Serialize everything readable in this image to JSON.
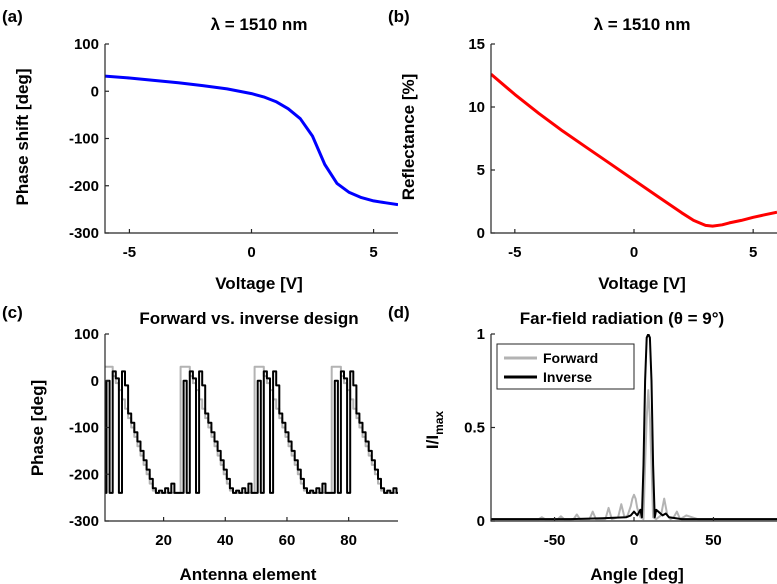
{
  "chart_data": [
    {
      "panel": "(a)",
      "type": "line",
      "title": "λ = 1510 nm",
      "xlabel": "Voltage [V]",
      "ylabel": "Phase shift [deg]",
      "xlim": [
        -6,
        6
      ],
      "ylim": [
        -300,
        100
      ],
      "xticks": [
        -5,
        0,
        5
      ],
      "yticks": [
        100,
        0,
        -100,
        -200,
        -300
      ],
      "grid": false,
      "series": [
        {
          "color": "#0000ff",
          "step": false,
          "x": [
            -6,
            -5,
            -4,
            -3,
            -2,
            -1,
            0,
            0.5,
            1,
            1.5,
            2,
            2.5,
            3,
            3.5,
            4,
            4.5,
            5,
            5.5,
            6
          ],
          "y": [
            32,
            28,
            23,
            18,
            12,
            5,
            -5,
            -12,
            -22,
            -37,
            -58,
            -95,
            -155,
            -195,
            -214,
            -225,
            -232,
            -236,
            -240
          ]
        }
      ]
    },
    {
      "panel": "(b)",
      "type": "line",
      "title": "λ = 1510 nm",
      "xlabel": "Voltage [V]",
      "ylabel": "Reflectance [%]",
      "xlim": [
        -6,
        6
      ],
      "ylim": [
        0,
        15
      ],
      "xticks": [
        -5,
        0,
        5
      ],
      "yticks": [
        0,
        5,
        10,
        15
      ],
      "grid": false,
      "series": [
        {
          "color": "#ff0000",
          "step": false,
          "x": [
            -6,
            -5,
            -4,
            -3,
            -2,
            -1,
            0,
            1,
            2,
            2.5,
            3,
            3.3,
            3.7,
            4,
            4.5,
            5,
            5.5,
            6
          ],
          "y": [
            12.6,
            11.0,
            9.5,
            8.1,
            6.8,
            5.5,
            4.2,
            2.9,
            1.6,
            1.0,
            0.6,
            0.55,
            0.65,
            0.8,
            1.0,
            1.25,
            1.45,
            1.65
          ]
        }
      ]
    },
    {
      "panel": "(c)",
      "type": "line",
      "title": "Forward vs. inverse design",
      "xlabel": "Antenna element",
      "ylabel": "Phase [deg]",
      "xlim": [
        1,
        96
      ],
      "ylim": [
        -300,
        100
      ],
      "xticks": [
        20,
        40,
        60,
        80
      ],
      "yticks": [
        100,
        0,
        -100,
        -200,
        -300
      ],
      "grid": false,
      "series": [
        {
          "name": "Forward",
          "color": "#b3b3b3",
          "step": true,
          "x": [
            1,
            2,
            3,
            4,
            5,
            6,
            7,
            8,
            9,
            10,
            11,
            12,
            13,
            14,
            15,
            16,
            17,
            18,
            19,
            20,
            21,
            22,
            23,
            24,
            25,
            26,
            27,
            28,
            29,
            30,
            31,
            32,
            33,
            34,
            35,
            36,
            37,
            38,
            39,
            40,
            41,
            42,
            43,
            44,
            45,
            46,
            47,
            48,
            49,
            50,
            51,
            52,
            53,
            54,
            55,
            56,
            57,
            58,
            59,
            60,
            61,
            62,
            63,
            64,
            65,
            66,
            67,
            68,
            69,
            70,
            71,
            72,
            73,
            74,
            75,
            76,
            77,
            78,
            79,
            80,
            81,
            82,
            83,
            84,
            85,
            86,
            87,
            88,
            89,
            90,
            91,
            92,
            93,
            94,
            95,
            96
          ],
          "y": [
            30,
            30,
            30,
            10,
            -5,
            -20,
            -40,
            -60,
            -80,
            -100,
            -120,
            -140,
            -160,
            -180,
            -200,
            -220,
            -235,
            -240,
            -240,
            -240,
            -240,
            -240,
            -240,
            -240,
            -240,
            30,
            30,
            30,
            10,
            -5,
            -20,
            -40,
            -60,
            -80,
            -100,
            -120,
            -140,
            -160,
            -180,
            -200,
            -220,
            -235,
            -240,
            -240,
            -240,
            -240,
            -240,
            -240,
            -240,
            30,
            30,
            30,
            10,
            -5,
            -20,
            -40,
            -60,
            -80,
            -100,
            -120,
            -140,
            -160,
            -180,
            -200,
            -220,
            -235,
            -240,
            -240,
            -240,
            -240,
            -240,
            -240,
            -240,
            -240,
            30,
            30,
            30,
            10,
            -5,
            -20,
            -40,
            -60,
            -80,
            -100,
            -120,
            -140,
            -160,
            -180,
            -200,
            -220,
            -235,
            -240,
            -240,
            -240,
            -240,
            -240
          ]
        },
        {
          "name": "Inverse",
          "color": "#000000",
          "step": true,
          "x": [
            1,
            2,
            3,
            4,
            5,
            6,
            7,
            8,
            9,
            10,
            11,
            12,
            13,
            14,
            15,
            16,
            17,
            18,
            19,
            20,
            21,
            22,
            23,
            24,
            25,
            26,
            27,
            28,
            29,
            30,
            31,
            32,
            33,
            34,
            35,
            36,
            37,
            38,
            39,
            40,
            41,
            42,
            43,
            44,
            45,
            46,
            47,
            48,
            49,
            50,
            51,
            52,
            53,
            54,
            55,
            56,
            57,
            58,
            59,
            60,
            61,
            62,
            63,
            64,
            65,
            66,
            67,
            68,
            69,
            70,
            71,
            72,
            73,
            74,
            75,
            76,
            77,
            78,
            79,
            80,
            81,
            82,
            83,
            84,
            85,
            86,
            87,
            88,
            89,
            90,
            91,
            92,
            93,
            94,
            95,
            96
          ],
          "y": [
            -240,
            0,
            -240,
            20,
            5,
            -240,
            20,
            -10,
            -70,
            -90,
            -110,
            -130,
            -150,
            -170,
            -190,
            -210,
            -230,
            -240,
            -235,
            -240,
            -230,
            -240,
            -220,
            -240,
            -240,
            -240,
            0,
            -240,
            20,
            5,
            -240,
            20,
            -10,
            -70,
            -90,
            -110,
            -130,
            -150,
            -170,
            -190,
            -210,
            -230,
            -240,
            -235,
            -240,
            -230,
            -240,
            -220,
            -240,
            -240,
            0,
            -240,
            20,
            5,
            -240,
            20,
            -10,
            -70,
            -90,
            -110,
            -130,
            -150,
            -170,
            -190,
            -210,
            -230,
            -240,
            -235,
            -240,
            -230,
            -240,
            -220,
            -240,
            -240,
            -240,
            0,
            -240,
            20,
            5,
            -240,
            20,
            -10,
            -70,
            -90,
            -110,
            -130,
            -150,
            -170,
            -190,
            -210,
            -230,
            -240,
            -235,
            -240,
            -230,
            -240
          ]
        }
      ],
      "legend": "none"
    },
    {
      "panel": "(d)",
      "type": "line",
      "title": "Far-field radiation (θ = 9°)",
      "xlabel": "Angle [deg]",
      "ylabel": "I/I",
      "ylabel_sub": "max",
      "xlim": [
        -90,
        90
      ],
      "ylim": [
        0,
        1
      ],
      "xticks": [
        -50,
        0,
        50
      ],
      "yticks": [
        0,
        0.5,
        1
      ],
      "grid": false,
      "legend_position": "top-left",
      "series": [
        {
          "name": "Forward",
          "color": "#b3b3b3",
          "step": false,
          "x": [
            -90,
            -60,
            -58,
            -56,
            -48,
            -46,
            -44,
            -38,
            -36,
            -34,
            -28,
            -26,
            -24,
            -18,
            -16,
            -14,
            -10,
            -8,
            -6,
            -4,
            -2,
            -1,
            0,
            1,
            2,
            4,
            6,
            7,
            8,
            9,
            10,
            11,
            12,
            14,
            17,
            19,
            21,
            23,
            25,
            27,
            29,
            31,
            33,
            40,
            60,
            90
          ],
          "y": [
            0.01,
            0.01,
            0.02,
            0.01,
            0.01,
            0.025,
            0.01,
            0.01,
            0.035,
            0.01,
            0.01,
            0.05,
            0.01,
            0.01,
            0.07,
            0.01,
            0.02,
            0.09,
            0.02,
            0.03,
            0.08,
            0.12,
            0.14,
            0.12,
            0.07,
            0.02,
            0.01,
            0.3,
            0.55,
            0.7,
            0.55,
            0.3,
            0.02,
            0.01,
            0.03,
            0.12,
            0.03,
            0.01,
            0.02,
            0.05,
            0.01,
            0.02,
            0.03,
            0.01,
            0.01,
            0.01
          ]
        },
        {
          "name": "Inverse",
          "color": "#000000",
          "step": false,
          "x": [
            -90,
            -40,
            -20,
            -5,
            -2,
            0,
            2,
            4,
            5,
            6,
            7,
            8,
            9,
            10,
            11,
            12,
            13,
            14,
            18,
            20,
            22,
            30,
            60,
            90
          ],
          "y": [
            0.01,
            0.01,
            0.015,
            0.02,
            0.03,
            0.05,
            0.03,
            0.06,
            0.02,
            0.3,
            0.75,
            0.98,
            1.0,
            0.98,
            0.75,
            0.3,
            0.02,
            0.06,
            0.03,
            0.04,
            0.02,
            0.01,
            0.01,
            0.01
          ]
        }
      ]
    }
  ]
}
